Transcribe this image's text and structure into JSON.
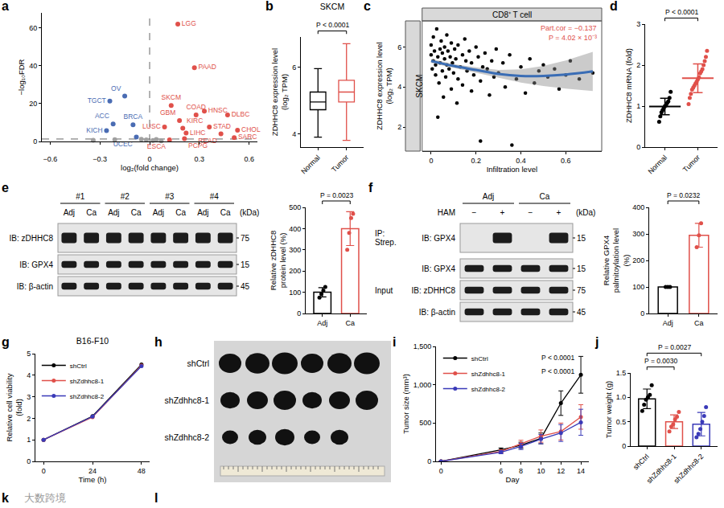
{
  "chart_data": [
    {
      "panel": "a",
      "type": "volcano",
      "x_label": "log₂(fold change)",
      "y_label": "−log₁₀FDR",
      "xlim": [
        -0.65,
        0.65
      ],
      "xticks": [
        {
          "value": -0.6,
          "label": "−0.6"
        },
        {
          "value": -0.3,
          "label": "−0.3"
        },
        0,
        0.3,
        0.6
      ],
      "ylim": [
        0,
        68
      ],
      "yticks": [
        0,
        20,
        40,
        60
      ],
      "thresholds": {
        "x": 0,
        "y": 1.3
      },
      "series": [
        {
          "color": "#4a6cb3",
          "x": [
            -0.15,
            -0.24,
            -0.22,
            -0.1,
            -0.26,
            -0.08
          ],
          "values": [
            24,
            21.4,
            9.2,
            8.8,
            5.7,
            2.3
          ],
          "point_labels": [
            "OV",
            "TGCT",
            "ACC",
            "BRCA",
            "KICH",
            "UCEC"
          ]
        },
        {
          "color": "#e0504a",
          "x": [
            0.17,
            0.27,
            0.13,
            0.33,
            0.28,
            0.47,
            0.18,
            0.09,
            0.2,
            0.36,
            0.22,
            0.53,
            0.43,
            0.51,
            0.12,
            0.21
          ],
          "values": [
            62,
            39,
            19,
            16,
            14,
            14,
            11,
            7.6,
            7,
            7.6,
            4.5,
            6,
            4,
            2,
            0.8,
            1.5
          ],
          "point_labels": [
            "LGG",
            "PAAD",
            "SKCM",
            "HNSC",
            "COAD",
            "DLBC",
            "GBM",
            "LUSC",
            "KIRC",
            "STAD",
            "LIHC",
            "CHOL",
            "READ",
            "SARC",
            "ESCA",
            "PCPG"
          ]
        },
        {
          "color": "#a0a0a0",
          "x": [
            -0.34,
            -0.21,
            -0.05,
            -0.02,
            0.02,
            0.04,
            0.07
          ],
          "values": [
            0.6,
            1.0,
            1.2,
            0.8,
            0.5,
            1.1,
            0.3
          ]
        }
      ]
    },
    {
      "panel": "b",
      "type": "box",
      "title": "SKCM",
      "y_label": "ZDHHC8 expression level (log₂ TPM)",
      "categories": [
        "Normal",
        "Tumor"
      ],
      "colors": [
        "#000000",
        "#e0504a"
      ],
      "min": [
        3.9,
        3.8
      ],
      "q1": [
        4.72,
        4.95
      ],
      "median": [
        4.95,
        5.25
      ],
      "q3": [
        5.25,
        5.6
      ],
      "max": [
        5.95,
        6.7
      ],
      "ylim": [
        3.6,
        6.9
      ],
      "yticks": [
        4,
        6
      ],
      "comparisons": [
        {
          "pair": [
            "Normal",
            "Tumor"
          ],
          "label": "P < 0.0001"
        }
      ]
    },
    {
      "panel": "c",
      "type": "scatter",
      "title": "CD8⁺ T cell",
      "facet": "SKCM",
      "x_label": "Infiltration level",
      "y_label": "ZDHHC8 expression level (log₂ TPM)",
      "xlim": [
        -0.04,
        0.76
      ],
      "xticks": [
        0,
        0.2,
        0.4,
        0.6
      ],
      "ylim": [
        0.8,
        7.3
      ],
      "yticks": [
        2,
        4,
        6
      ],
      "color": "#000000",
      "x": [
        0,
        0,
        0.005,
        0.01,
        0.01,
        0.015,
        0.02,
        0.02,
        0.025,
        0.03,
        0.03,
        0.035,
        0.04,
        0.04,
        0.045,
        0.05,
        0.05,
        0.055,
        0.06,
        0.06,
        0.065,
        0.07,
        0.07,
        0.075,
        0.08,
        0.085,
        0.09,
        0.09,
        0.095,
        0.1,
        0.105,
        0.11,
        0.115,
        0.12,
        0.12,
        0.13,
        0.14,
        0.14,
        0.15,
        0.155,
        0.16,
        0.17,
        0.18,
        0.18,
        0.19,
        0.2,
        0.21,
        0.22,
        0.22,
        0.23,
        0.24,
        0.25,
        0.26,
        0.27,
        0.28,
        0.29,
        0.3,
        0.32,
        0.33,
        0.35,
        0.36,
        0.38,
        0.4,
        0.42,
        0.44,
        0.46,
        0.48,
        0.5,
        0.52,
        0.55,
        0.57,
        0.6,
        0.62,
        0.66,
        0.72
      ],
      "values": [
        5.6,
        6.1,
        4.9,
        5.3,
        6.5,
        5.8,
        4.6,
        5.1,
        6.9,
        5.5,
        2.5,
        4.2,
        5.9,
        5.2,
        6.3,
        4.8,
        5.7,
        3.5,
        5.4,
        6.0,
        4.5,
        5.1,
        6.6,
        5.8,
        4.9,
        5.5,
        3.9,
        6.2,
        5.2,
        4.7,
        5.9,
        5.4,
        3.2,
        6.1,
        4.4,
        5.0,
        5.6,
        4.1,
        6.4,
        5.3,
        4.8,
        5.8,
        3.8,
        5.2,
        4.6,
        6.0,
        5.5,
        1.3,
        4.3,
        5.0,
        5.7,
        4.9,
        3.6,
        5.3,
        4.5,
        5.9,
        4.7,
        5.2,
        4.0,
        5.6,
        1.1,
        4.4,
        5.0,
        3.7,
        5.4,
        4.2,
        4.8,
        5.1,
        4.5,
        4.9,
        3.9,
        4.6,
        5.3,
        4.4,
        4.7
      ],
      "fit": {
        "color": "#3a6db5",
        "x": [
          0,
          0.1,
          0.2,
          0.3,
          0.4,
          0.5,
          0.6,
          0.72
        ],
        "values": [
          5.3,
          5.05,
          4.85,
          4.65,
          4.55,
          4.55,
          4.62,
          4.78
        ],
        "lower": [
          5.2,
          4.96,
          4.72,
          4.45,
          4.22,
          4.05,
          3.92,
          3.8
        ],
        "upper": [
          5.4,
          5.14,
          4.98,
          4.85,
          4.88,
          5.05,
          5.32,
          5.76
        ]
      },
      "annotations": {
        "color": "#e0504a",
        "texts": [
          "Part.cor = −0.137",
          "P = 4.02 × 10⁻³"
        ]
      }
    },
    {
      "panel": "d",
      "type": "dot",
      "y_label": "ZDHHC8 mRNA (fold)",
      "categories": [
        "Normal",
        "Tumor"
      ],
      "colors": [
        "#000000",
        "#e0504a"
      ],
      "points": [
        [
          0.62,
          0.75,
          0.85,
          0.9,
          0.95,
          1.0,
          1.02,
          1.08,
          1.12,
          1.2,
          1.35
        ],
        [
          1.05,
          1.2,
          1.3,
          1.4,
          1.45,
          1.5,
          1.55,
          1.6,
          1.65,
          1.7,
          1.8,
          1.85,
          1.9,
          2.0,
          2.1,
          2.2,
          2.35
        ]
      ],
      "values": [
        0.99,
        1.68
      ],
      "errors": [
        0.2,
        0.35
      ],
      "ylim": [
        0,
        3
      ],
      "yticks": [
        0,
        1,
        2,
        3
      ],
      "comparisons": [
        {
          "pair": [
            "Normal",
            "Tumor"
          ],
          "label": "P < 0.0001"
        }
      ]
    },
    {
      "type": "bar",
      "y_label": "Relative zDHHC8 protein level (%)",
      "categories": [
        "Adj",
        "Ca"
      ],
      "colors": [
        "#000000",
        "#e0504a"
      ],
      "values": [
        100,
        400
      ],
      "errors": [
        22,
        80
      ],
      "points": [
        [
          75,
          92,
          108,
          125
        ],
        [
          300,
          380,
          450,
          470
        ]
      ],
      "ylim": [
        0,
        500
      ],
      "yticks": [
        0,
        100,
        200,
        300,
        400,
        500
      ],
      "comparisons": [
        {
          "pair": [
            "Adj",
            "Ca"
          ],
          "label": "P = 0.0023"
        }
      ]
    },
    {
      "type": "bar",
      "y_label": "Relative GPX4 palmitoylation level (%)",
      "categories": [
        "Adj",
        "Ca"
      ],
      "colors": [
        "#000000",
        "#e0504a"
      ],
      "values": [
        100,
        295
      ],
      "errors": [
        0,
        45
      ],
      "points": [
        [
          100,
          100,
          100
        ],
        [
          250,
          295,
          340
        ]
      ],
      "ylim": [
        0,
        400
      ],
      "yticks": [
        0,
        100,
        200,
        300,
        400
      ],
      "comparisons": [
        {
          "pair": [
            "Adj",
            "Ca"
          ],
          "label": "P = 0.0232"
        }
      ]
    },
    {
      "panel": "g",
      "type": "line",
      "title": "B16-F10",
      "x_label": "Time (h)",
      "y_label": "Relative cell viability (fold)",
      "x": [
        0,
        24,
        48
      ],
      "xlim": [
        -4,
        52
      ],
      "xticks": [
        0,
        24,
        48
      ],
      "ylim": [
        0,
        5
      ],
      "yticks": [
        0,
        1,
        2,
        3,
        4,
        5
      ],
      "legend": "top-left",
      "series": [
        {
          "name": "shCtrl",
          "color": "#000000",
          "values": [
            1,
            2.1,
            4.5
          ]
        },
        {
          "name": "shZdhhc8-1",
          "color": "#e0504a",
          "values": [
            1,
            2.05,
            4.45
          ]
        },
        {
          "name": "shZdhhc8-2",
          "color": "#3a3ab8",
          "values": [
            1,
            2.08,
            4.42
          ]
        }
      ]
    },
    {
      "panel": "i",
      "type": "line",
      "x_label": "Day",
      "y_label": "Tumor size (mm³)",
      "x": [
        0,
        6,
        8,
        10,
        12,
        14
      ],
      "xlim": [
        -0.5,
        14.8
      ],
      "xticks": [
        0,
        6,
        8,
        10,
        12,
        14
      ],
      "ylim": [
        0,
        1500
      ],
      "yticks": [
        0,
        500,
        {
          "value": 1000,
          "label": "1,000"
        },
        {
          "value": 1500,
          "label": "1,500"
        }
      ],
      "legend": "top-left",
      "series": [
        {
          "name": "shCtrl",
          "color": "#000000",
          "values": [
            0,
            150,
            210,
            300,
            760,
            1130
          ],
          "errors": [
            0,
            25,
            40,
            70,
            160,
            240
          ]
        },
        {
          "name": "shZdhhc8-1",
          "color": "#e0504a",
          "values": [
            0,
            130,
            230,
            330,
            390,
            580
          ],
          "errors": [
            0,
            20,
            45,
            80,
            110,
            160
          ]
        },
        {
          "name": "shZdhhc8-2",
          "color": "#3a3ab8",
          "values": [
            0,
            120,
            195,
            290,
            370,
            510
          ],
          "errors": [
            0,
            20,
            40,
            60,
            110,
            170
          ]
        }
      ],
      "p_labels": [
        "P < 0.0001",
        "P < 0.0001"
      ]
    },
    {
      "panel": "j",
      "type": "bar",
      "y_label": "Tumor weight (g)",
      "categories": [
        "shCtrl",
        "shZdhhc8-1",
        "shZdhhc8-2"
      ],
      "colors": [
        "#000000",
        "#e0504a",
        "#3a3ab8"
      ],
      "values": [
        0.97,
        0.5,
        0.45
      ],
      "errors": [
        0.2,
        0.14,
        0.24
      ],
      "points": [
        [
          0.72,
          0.85,
          0.95,
          1.0,
          1.05,
          1.25
        ],
        [
          0.3,
          0.4,
          0.45,
          0.55,
          0.6,
          0.7
        ],
        [
          0.18,
          0.25,
          0.35,
          0.5,
          0.62,
          0.8
        ]
      ],
      "ylim": [
        0,
        1.5
      ],
      "yticks": [
        0,
        0.5,
        {
          "value": 1,
          "label": "1.0"
        },
        1.5
      ],
      "comparisons": [
        {
          "pair": [
            "shCtrl",
            "shZdhhc8-1"
          ],
          "label": "P = 0.0030"
        },
        {
          "pair": [
            "shCtrl",
            "shZdhhc8-2"
          ],
          "label": "P = 0.0027"
        }
      ]
    }
  ],
  "blots": [
    {
      "panel": "e",
      "groups": [
        "#1",
        "#2",
        "#3",
        "#4"
      ],
      "lanes": [
        "Adj",
        "Ca",
        "Adj",
        "Ca",
        "Adj",
        "Ca",
        "Adj",
        "Ca"
      ],
      "unit": "(kDa)",
      "sections": [
        {
          "rows": [
            {
              "label": "IB: zDHHC8",
              "kda": "75",
              "bands": [
                true,
                true,
                true,
                true,
                true,
                true,
                true,
                true
              ]
            },
            {
              "label": "IB: GPX4",
              "kda": "15",
              "bands": [
                true,
                true,
                true,
                true,
                true,
                true,
                true,
                true
              ]
            },
            {
              "label": "IB: β-actin",
              "kda": "45",
              "bands": [
                true,
                true,
                true,
                true,
                true,
                true,
                true,
                true
              ]
            }
          ]
        }
      ]
    },
    {
      "panel": "f",
      "groups": [
        "Adj",
        "Ca"
      ],
      "treatment": "HAM",
      "lanes": [
        "−",
        "+",
        "−",
        "+"
      ],
      "unit": "(kDa)",
      "sections": [
        {
          "label": "IP: Strep.",
          "rows": [
            {
              "label": "IB: GPX4",
              "kda": "15",
              "bands": [
                false,
                true,
                false,
                true
              ]
            }
          ]
        },
        {
          "label": "Input",
          "rows": [
            {
              "label": "IB: GPX4",
              "kda": "15",
              "bands": [
                true,
                true,
                true,
                true
              ]
            },
            {
              "label": "IB: zDHHC8",
              "kda": "75",
              "bands": [
                true,
                true,
                true,
                true
              ]
            },
            {
              "label": "IB: β-actin",
              "kda": "45",
              "bands": [
                true,
                true,
                true,
                true
              ]
            }
          ]
        }
      ]
    }
  ],
  "photo": {
    "panel": "h",
    "rows": [
      {
        "label": "shCtrl",
        "count": 6
      },
      {
        "label": "shZdhhc8-1",
        "count": 6
      },
      {
        "label": "shZdhhc8-2",
        "count": 5
      }
    ]
  },
  "other_labels": [
    "k",
    "l"
  ],
  "watermark": "大数跨境"
}
